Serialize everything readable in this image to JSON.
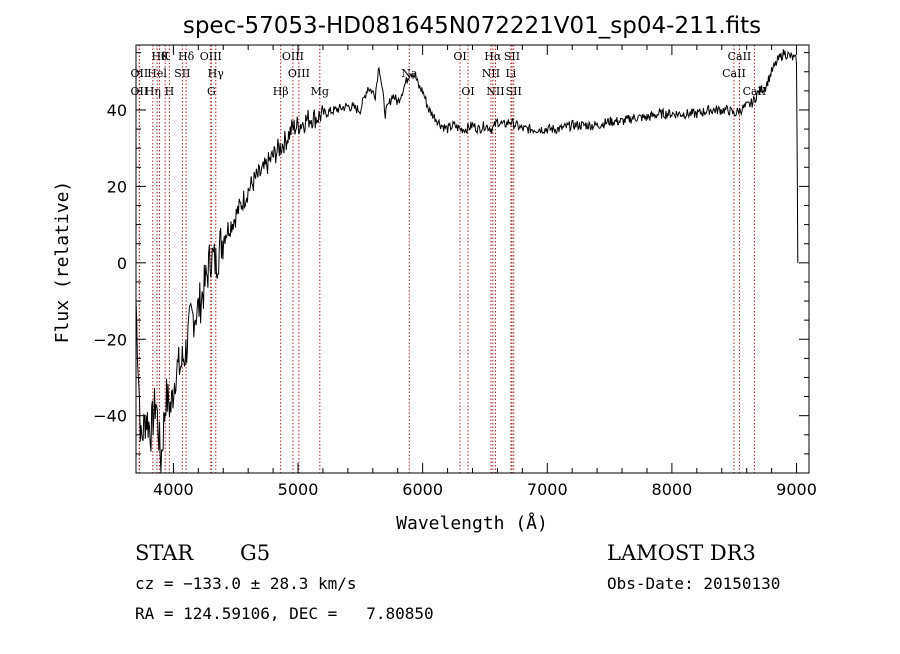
{
  "chart_data": {
    "type": "line",
    "title": "spec-57053-HD081645N072221V01_sp04-211.fits",
    "xlabel": "Wavelength (Å)",
    "ylabel": "Flux (relative)",
    "xlim": [
      3700,
      9100
    ],
    "ylim": [
      -55,
      57
    ],
    "xticks": [
      4000,
      5000,
      6000,
      7000,
      8000,
      9000
    ],
    "yticks": [
      -40,
      -20,
      0,
      20,
      40
    ],
    "grid": false,
    "series": [
      {
        "x": [
          3700,
          3740,
          3780,
          3820,
          3860,
          3900,
          3940,
          3980,
          4020,
          4060,
          4100,
          4140,
          4200,
          4260,
          4300,
          4340,
          4380,
          4420,
          4480,
          4540,
          4600,
          4660,
          4720,
          4780,
          4850,
          4900,
          4950,
          5000,
          5050,
          5100,
          5150,
          5200,
          5300,
          5400,
          5500,
          5560,
          5620,
          5650,
          5700,
          5760,
          5800,
          5850,
          5900,
          5940,
          5970,
          6000,
          6050,
          6100,
          6150,
          6200,
          6250,
          6300,
          6350,
          6400,
          6450,
          6500,
          6560,
          6600,
          6650,
          6700,
          6750,
          6800,
          6900,
          7000,
          7100,
          7200,
          7300,
          7400,
          7500,
          7600,
          7700,
          7800,
          7900,
          8000,
          8100,
          8200,
          8300,
          8400,
          8450,
          8500,
          8550,
          8600,
          8650,
          8700,
          8750,
          8800,
          8850,
          8900,
          8950,
          9000,
          9010
        ],
        "values": [
          -10,
          -47,
          -40,
          -44,
          -36,
          -52,
          -35,
          -38,
          -28,
          -27,
          -23,
          -15,
          -12,
          -5,
          2,
          0,
          5,
          8,
          11,
          15,
          19,
          22,
          24,
          27,
          30,
          32,
          35,
          36,
          37,
          38,
          38,
          39,
          40,
          41,
          40,
          46,
          44,
          52,
          39,
          44,
          42,
          46,
          50,
          49,
          46,
          45,
          40,
          38,
          36,
          35,
          36,
          35,
          35,
          36,
          35,
          36,
          35,
          37,
          36,
          37,
          36,
          35,
          35,
          35,
          35,
          36,
          36,
          36,
          37,
          37,
          38,
          38,
          39,
          39,
          39,
          39,
          40,
          40,
          40,
          39,
          40,
          41,
          42,
          45,
          46,
          50,
          53,
          55,
          54,
          53,
          0
        ]
      }
    ],
    "line_markers": [
      {
        "wl": 3889,
        "label": "Hθ",
        "row": 0
      },
      {
        "wl": 3934,
        "label": "K",
        "row": 0
      },
      {
        "wl": 4102,
        "label": "Hδ",
        "row": 0
      },
      {
        "wl": 4300,
        "label": "OIII",
        "row": 0
      },
      {
        "wl": 4959,
        "label": "OIII",
        "row": 0
      },
      {
        "wl": 6300,
        "label": "OI",
        "row": 0
      },
      {
        "wl": 6563,
        "label": "Hα",
        "row": 0
      },
      {
        "wl": 6717,
        "label": "SII",
        "row": 0
      },
      {
        "wl": 8542,
        "label": "CaII",
        "row": 0
      },
      {
        "wl": 3727,
        "label": "OII",
        "row": 1
      },
      {
        "wl": 3869,
        "label": "Hel",
        "row": 1
      },
      {
        "wl": 4072,
        "label": "SII",
        "row": 1
      },
      {
        "wl": 4340,
        "label": "Hγ",
        "row": 1
      },
      {
        "wl": 5007,
        "label": "OIII",
        "row": 1
      },
      {
        "wl": 5893,
        "label": "Na",
        "row": 1
      },
      {
        "wl": 6548,
        "label": "NII",
        "row": 1
      },
      {
        "wl": 6708,
        "label": "Li",
        "row": 1
      },
      {
        "wl": 8498,
        "label": "CaII",
        "row": 1
      },
      {
        "wl": 3727,
        "label": "OII",
        "row": 2
      },
      {
        "wl": 3835,
        "label": "Hη",
        "row": 2
      },
      {
        "wl": 3968,
        "label": "H",
        "row": 2
      },
      {
        "wl": 4305,
        "label": "G",
        "row": 2
      },
      {
        "wl": 4861,
        "label": "Hβ",
        "row": 2
      },
      {
        "wl": 5175,
        "label": "Mg",
        "row": 2
      },
      {
        "wl": 6364,
        "label": "OI",
        "row": 2
      },
      {
        "wl": 6584,
        "label": "NII",
        "row": 2
      },
      {
        "wl": 6731,
        "label": "SII",
        "row": 2
      },
      {
        "wl": 8662,
        "label": "CaII",
        "row": 2
      }
    ]
  },
  "info": {
    "type": "STAR",
    "subclass": "G5",
    "survey": "LAMOST DR3",
    "cz": "cz = −133.0 ± 28.3 km/s",
    "obsdate": "Obs-Date: 20150130",
    "radec": "RA = 124.59106, DEC =   7.80850"
  },
  "colors": {
    "spectrum": "#000000",
    "marker": "#b22222"
  }
}
